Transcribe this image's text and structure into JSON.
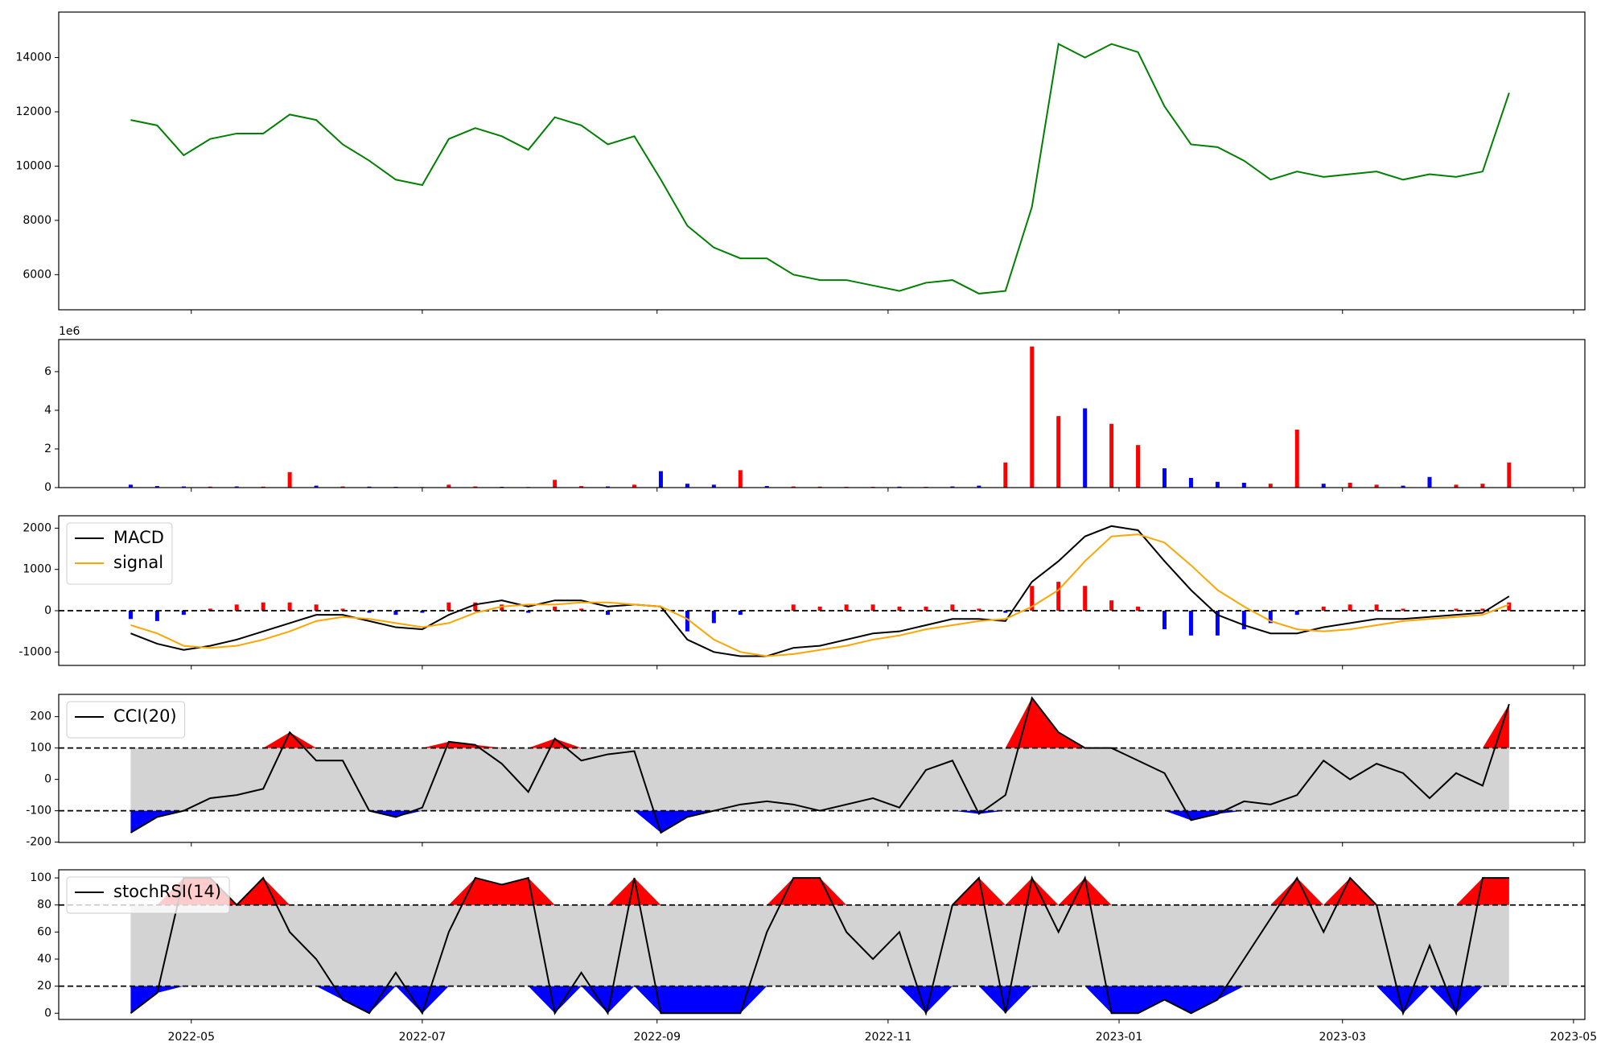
{
  "chart_data": [
    {
      "type": "line",
      "color": "green",
      "x": [
        19097,
        19104,
        19111,
        19118,
        19125,
        19132,
        19139,
        19146,
        19153,
        19160,
        19167,
        19174,
        19181,
        19188,
        19195,
        19202,
        19209,
        19216,
        19223,
        19230,
        19237,
        19244,
        19251,
        19258,
        19265,
        19272,
        19279,
        19286,
        19293,
        19300,
        19307,
        19314,
        19321,
        19328,
        19335,
        19342,
        19349,
        19356,
        19363,
        19370,
        19377,
        19384,
        19391,
        19398,
        19405,
        19412,
        19419,
        19426,
        19433,
        19440,
        19447,
        19454,
        19461
      ],
      "values": [
        11700,
        11500,
        10400,
        11000,
        11200,
        11200,
        11900,
        11700,
        10800,
        10200,
        9500,
        9300,
        11000,
        11400,
        11100,
        10600,
        11800,
        11500,
        10800,
        11100,
        9500,
        7800,
        7000,
        6600,
        6600,
        6000,
        5800,
        5800,
        5600,
        5400,
        5700,
        5800,
        5300,
        5400,
        8500,
        14500,
        14000,
        14500,
        14200,
        12200,
        10800,
        10700,
        10200,
        9500,
        9800,
        9600,
        9700,
        9800,
        9500,
        9700,
        9600,
        9800,
        12700
      ],
      "xlim": [
        19078,
        19481
      ],
      "ylim": [
        4705,
        15676
      ],
      "yticks": [
        6000,
        8000,
        10000,
        12000,
        14000
      ]
    },
    {
      "type": "bar",
      "offset_label": "1e6",
      "x": [
        19097,
        19104,
        19111,
        19118,
        19125,
        19132,
        19139,
        19146,
        19153,
        19160,
        19167,
        19174,
        19181,
        19188,
        19195,
        19202,
        19209,
        19216,
        19223,
        19230,
        19237,
        19244,
        19251,
        19258,
        19265,
        19272,
        19279,
        19286,
        19293,
        19300,
        19307,
        19314,
        19321,
        19328,
        19335,
        19342,
        19349,
        19356,
        19363,
        19370,
        19377,
        19384,
        19391,
        19398,
        19405,
        19412,
        19419,
        19426,
        19433,
        19440,
        19447,
        19454,
        19461
      ],
      "values": [
        150000,
        80000,
        60000,
        50000,
        60000,
        50000,
        800000,
        100000,
        60000,
        50000,
        40000,
        30000,
        150000,
        60000,
        40000,
        30000,
        400000,
        80000,
        60000,
        150000,
        850000,
        200000,
        150000,
        900000,
        80000,
        60000,
        50000,
        40000,
        40000,
        50000,
        40000,
        60000,
        100000,
        1300000,
        7300000,
        3700000,
        4100000,
        3300000,
        2200000,
        1000000,
        500000,
        300000,
        250000,
        200000,
        3000000,
        200000,
        250000,
        150000,
        100000,
        550000,
        150000,
        200000,
        1300000
      ],
      "colors": [
        "blue",
        "blue",
        "blue",
        "red",
        "blue",
        "red",
        "red",
        "blue",
        "red",
        "blue",
        "blue",
        "red",
        "red",
        "red",
        "blue",
        "blue",
        "red",
        "red",
        "blue",
        "red",
        "blue",
        "blue",
        "blue",
        "red",
        "blue",
        "red",
        "red",
        "red",
        "red",
        "blue",
        "red",
        "blue",
        "blue",
        "red",
        "red",
        "red",
        "blue",
        "red",
        "red",
        "blue",
        "blue",
        "blue",
        "blue",
        "red",
        "red",
        "blue",
        "red",
        "red",
        "blue",
        "blue",
        "red",
        "red",
        "red"
      ],
      "xlim": [
        19078,
        19481
      ],
      "ylim": [
        0,
        7660000
      ],
      "yticks": [
        0,
        {
          "value": 2000000,
          "label": "2"
        },
        {
          "value": 4000000,
          "label": "4"
        },
        {
          "value": 6000000,
          "label": "6"
        }
      ]
    },
    {
      "type": "macd",
      "legend": "upper left",
      "x": [
        19097,
        19104,
        19111,
        19118,
        19125,
        19132,
        19139,
        19146,
        19153,
        19160,
        19167,
        19174,
        19181,
        19188,
        19195,
        19202,
        19209,
        19216,
        19223,
        19230,
        19237,
        19244,
        19251,
        19258,
        19265,
        19272,
        19279,
        19286,
        19293,
        19300,
        19307,
        19314,
        19321,
        19328,
        19335,
        19342,
        19349,
        19356,
        19363,
        19370,
        19377,
        19384,
        19391,
        19398,
        19405,
        19412,
        19419,
        19426,
        19433,
        19440,
        19447,
        19454,
        19461
      ],
      "series": [
        {
          "name": "MACD",
          "color": "black",
          "values": [
            -550,
            -800,
            -950,
            -850,
            -700,
            -500,
            -300,
            -100,
            -100,
            -250,
            -400,
            -450,
            -100,
            150,
            250,
            100,
            250,
            250,
            100,
            150,
            100,
            -700,
            -1000,
            -1100,
            -1100,
            -900,
            -850,
            -700,
            -550,
            -500,
            -350,
            -200,
            -200,
            -250,
            700,
            1200,
            1800,
            2050,
            1950,
            1200,
            500,
            -100,
            -350,
            -550,
            -550,
            -400,
            -300,
            -200,
            -200,
            -150,
            -100,
            -50,
            350
          ]
        },
        {
          "name": "signal",
          "color": "orange",
          "values": [
            -350,
            -550,
            -850,
            -900,
            -850,
            -700,
            -500,
            -250,
            -150,
            -200,
            -300,
            -400,
            -300,
            -50,
            100,
            150,
            150,
            200,
            200,
            150,
            100,
            -200,
            -700,
            -1000,
            -1100,
            -1050,
            -950,
            -850,
            -700,
            -600,
            -450,
            -350,
            -250,
            -200,
            100,
            500,
            1200,
            1800,
            1850,
            1650,
            1100,
            500,
            100,
            -250,
            -450,
            -500,
            -450,
            -350,
            -250,
            -200,
            -150,
            -100,
            150
          ]
        }
      ],
      "histogram": {
        "positive_color": "red",
        "negative_color": "blue",
        "values": [
          -200,
          -250,
          -100,
          50,
          150,
          200,
          200,
          150,
          50,
          -50,
          -100,
          -50,
          200,
          200,
          150,
          -50,
          100,
          50,
          -100,
          0,
          0,
          -500,
          -300,
          -100,
          0,
          150,
          100,
          150,
          150,
          100,
          100,
          150,
          50,
          -50,
          600,
          700,
          600,
          250,
          100,
          -450,
          -600,
          -600,
          -450,
          -300,
          -100,
          100,
          150,
          150,
          50,
          0,
          50,
          50,
          200
        ]
      },
      "hlines": [
        0
      ],
      "xlim": [
        19078,
        19481
      ],
      "ylim": [
        -1325,
        2300
      ],
      "yticks": [
        -1000,
        0,
        1000,
        2000
      ]
    },
    {
      "type": "oscillator",
      "legend": "upper left",
      "band_color": "lightgray",
      "above_color": "red",
      "below_color": "blue",
      "x": [
        19097,
        19104,
        19111,
        19118,
        19125,
        19132,
        19139,
        19146,
        19153,
        19160,
        19167,
        19174,
        19181,
        19188,
        19195,
        19202,
        19209,
        19216,
        19223,
        19230,
        19237,
        19244,
        19251,
        19258,
        19265,
        19272,
        19279,
        19286,
        19293,
        19300,
        19307,
        19314,
        19321,
        19328,
        19335,
        19342,
        19349,
        19356,
        19363,
        19370,
        19377,
        19384,
        19391,
        19398,
        19405,
        19412,
        19419,
        19426,
        19433,
        19440,
        19447,
        19454,
        19461
      ],
      "series": [
        {
          "name": "CCI(20)",
          "color": "black",
          "values": [
            -170,
            -120,
            -100,
            -60,
            -50,
            -30,
            150,
            60,
            60,
            -100,
            -120,
            -90,
            120,
            110,
            50,
            -40,
            130,
            60,
            80,
            90,
            -170,
            -120,
            -100,
            -80,
            -70,
            -80,
            -100,
            -80,
            -60,
            -90,
            30,
            60,
            -110,
            -50,
            260,
            150,
            100,
            100,
            60,
            20,
            -130,
            -110,
            -70,
            -80,
            -50,
            60,
            0,
            50,
            20,
            -60,
            20,
            -20,
            240
          ]
        }
      ],
      "hlines": [
        -100,
        100
      ],
      "xlim": [
        19078,
        19481
      ],
      "ylim": [
        -201,
        271
      ],
      "yticks": [
        -200,
        -100,
        0,
        100,
        200
      ]
    },
    {
      "type": "oscillator",
      "legend": "upper left",
      "band_color": "lightgray",
      "above_color": "red",
      "below_color": "blue",
      "x": [
        19097,
        19104,
        19111,
        19118,
        19125,
        19132,
        19139,
        19146,
        19153,
        19160,
        19167,
        19174,
        19181,
        19188,
        19195,
        19202,
        19209,
        19216,
        19223,
        19230,
        19237,
        19244,
        19251,
        19258,
        19265,
        19272,
        19279,
        19286,
        19293,
        19300,
        19307,
        19314,
        19321,
        19328,
        19335,
        19342,
        19349,
        19356,
        19363,
        19370,
        19377,
        19384,
        19391,
        19398,
        19405,
        19412,
        19419,
        19426,
        19433,
        19440,
        19447,
        19454,
        19461
      ],
      "series": [
        {
          "name": "stochRSI(14)",
          "color": "black",
          "values": [
            0,
            15,
            100,
            100,
            80,
            100,
            60,
            40,
            10,
            0,
            30,
            0,
            60,
            100,
            95,
            100,
            0,
            30,
            0,
            100,
            0,
            0,
            0,
            0,
            60,
            100,
            100,
            60,
            40,
            60,
            0,
            80,
            100,
            0,
            100,
            60,
            100,
            0,
            0,
            10,
            0,
            10,
            40,
            70,
            100,
            60,
            100,
            80,
            0,
            50,
            0,
            100,
            100
          ]
        }
      ],
      "hlines": [
        20,
        80
      ],
      "xlim": [
        19078,
        19481
      ],
      "ylim": [
        -4.6,
        106
      ],
      "yticks": [
        0,
        20,
        40,
        60,
        80,
        100
      ],
      "xticks": [
        {
          "value": 19113,
          "label": "2022-05"
        },
        {
          "value": 19174,
          "label": "2022-07"
        },
        {
          "value": 19236,
          "label": "2022-09"
        },
        {
          "value": 19297,
          "label": "2022-11"
        },
        {
          "value": 19358,
          "label": "2023-01"
        },
        {
          "value": 19417,
          "label": "2023-03"
        },
        {
          "value": 19478,
          "label": "2023-05"
        }
      ]
    }
  ]
}
